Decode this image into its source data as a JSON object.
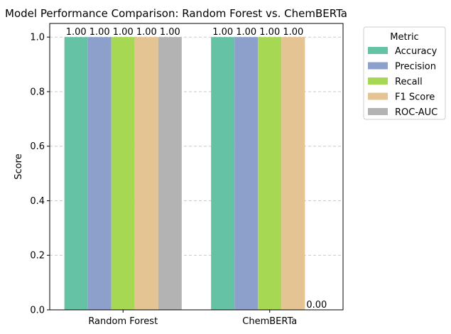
{
  "chart_data": {
    "type": "bar",
    "title": "Model Performance Comparison: Random Forest vs. ChemBERTa",
    "xlabel": "",
    "ylabel": "Score",
    "categories": [
      "Random Forest",
      "ChemBERTa"
    ],
    "series": [
      {
        "name": "Accuracy",
        "values": [
          1.0,
          1.0
        ],
        "color": "#66c2a5"
      },
      {
        "name": "Precision",
        "values": [
          1.0,
          1.0
        ],
        "color": "#8da0cb"
      },
      {
        "name": "Recall",
        "values": [
          1.0,
          1.0
        ],
        "color": "#a6d854"
      },
      {
        "name": "F1 Score",
        "values": [
          1.0,
          1.0
        ],
        "color": "#e5c494"
      },
      {
        "name": "ROC-AUC",
        "values": [
          1.0,
          0.0
        ],
        "color": "#b3b3b3"
      }
    ],
    "data_labels": [
      [
        "1.00",
        "1.00"
      ],
      [
        "1.00",
        "1.00"
      ],
      [
        "1.00",
        "1.00"
      ],
      [
        "1.00",
        "1.00"
      ],
      [
        "1.00",
        "0.00"
      ]
    ],
    "ylim": [
      0,
      1.05
    ],
    "yticks": [
      0.0,
      0.2,
      0.4,
      0.6,
      0.8,
      1.0
    ],
    "ytick_labels": [
      "0.0",
      "0.2",
      "0.4",
      "0.6",
      "0.8",
      "1.0"
    ],
    "grid": "y-dashed",
    "legend_title": "Metric",
    "legend_position": "outside-top-right"
  }
}
